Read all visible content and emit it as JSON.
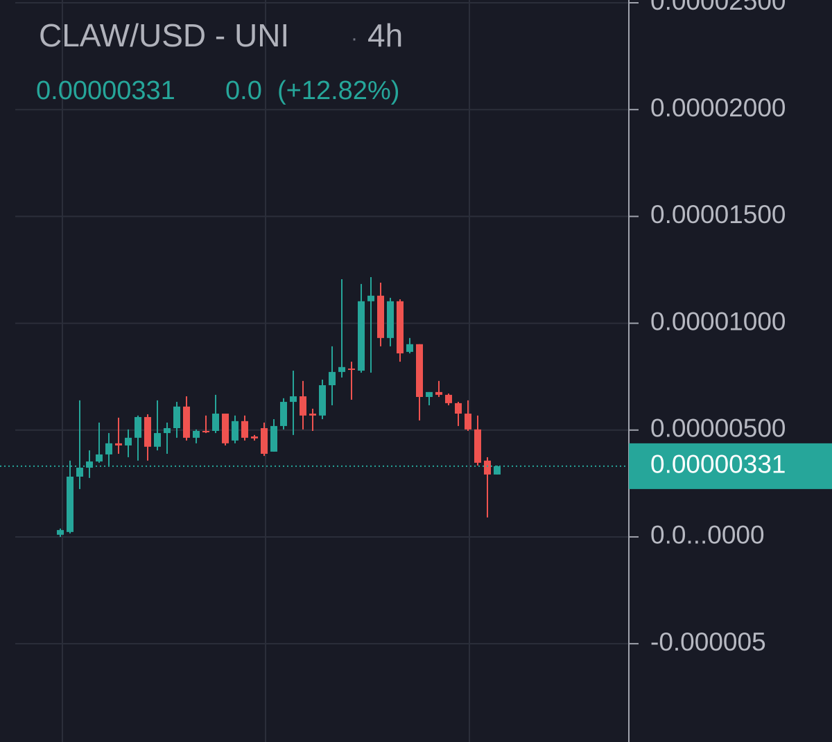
{
  "chart_data": {
    "type": "candlestick",
    "title": "CLAW/USD - UNI",
    "separator": "·",
    "interval": "4h",
    "last_price": 3.31e-06,
    "change": "0.0",
    "change_percent": "(+12.82%)",
    "up_color": "#26a69a",
    "down_color": "#ef5350",
    "grid": true,
    "ylim": [
      -9.6e-06,
      2.513e-05
    ],
    "yticks": [
      {
        "value": 2.5e-05,
        "label": "0.00002500"
      },
      {
        "value": 2e-05,
        "label": "0.00002000"
      },
      {
        "value": 1.5e-05,
        "label": "0.00001500"
      },
      {
        "value": 1e-05,
        "label": "0.00001000"
      },
      {
        "value": 5e-06,
        "label": "0.00000500"
      },
      {
        "value": 0,
        "label": "0.0...0000"
      },
      -5e-06
    ],
    "open": [
      1e-07,
      2.3e-07,
      2.82e-06,
      3.24e-06,
      3.53e-06,
      3.86e-06,
      4.38e-06,
      4.28e-06,
      4.64e-06,
      5.61e-06,
      4.22e-06,
      4.86e-06,
      5.09e-06,
      6.1e-06,
      4.64e-06,
      4.96e-06,
      4.96e-06,
      5.77e-06,
      4.51e-06,
      5.42e-06,
      4.7e-06,
      5.09e-06,
      3.99e-06,
      5.19e-06,
      6.32e-06,
      6.58e-06,
      5.77e-06,
      5.68e-06,
      7.1e-06,
      7.72e-06,
      7.88e-06,
      7.78e-06,
      1.103e-05,
      1.129e-05,
      9.31e-06,
      1.103e-05,
      8.66e-06,
      9.02e-06,
      6.55e-06,
      6.78e-06,
      6.65e-06,
      6.26e-06,
      5.77e-06,
      5.03e-06,
      3.57e-06,
      2.92e-06
    ],
    "high": [
      3.9e-07,
      3.57e-06,
      6.39e-06,
      4.05e-06,
      5.35e-06,
      4.86e-06,
      5.58e-06,
      5.03e-06,
      5.68e-06,
      5.74e-06,
      6.39e-06,
      5.35e-06,
      6.32e-06,
      6.58e-06,
      5.03e-06,
      5.68e-06,
      6.65e-06,
      5.77e-06,
      5.68e-06,
      5.68e-06,
      4.77e-06,
      5.35e-06,
      5.51e-06,
      6.49e-06,
      7.78e-06,
      7.3e-06,
      6e-06,
      7.36e-06,
      8.92e-06,
      1.206e-05,
      8.2e-06,
      1.184e-05,
      1.216e-05,
      1.19e-05,
      1.119e-05,
      1.112e-05,
      9.31e-06,
      9.02e-06,
      6.78e-06,
      7.3e-06,
      6.71e-06,
      6.32e-06,
      6.39e-06,
      5.68e-06,
      3.73e-06,
      3.34e-06
    ],
    "low": [
      0,
      1.6e-07,
      2.24e-06,
      2.76e-06,
      3.47e-06,
      3.31e-06,
      3.89e-06,
      3.73e-06,
      3.57e-06,
      3.57e-06,
      4.05e-06,
      3.89e-06,
      4.64e-06,
      4.51e-06,
      4.38e-06,
      4.86e-06,
      4.86e-06,
      4.28e-06,
      4.38e-06,
      4.51e-06,
      4.51e-06,
      3.79e-06,
      3.99e-06,
      5.03e-06,
      4.77e-06,
      5.03e-06,
      4.96e-06,
      5.51e-06,
      6.16e-06,
      7.46e-06,
      6.42e-06,
      7.69e-06,
      7.69e-06,
      8.92e-06,
      8.92e-06,
      8.2e-06,
      8.59e-06,
      5.45e-06,
      6.16e-06,
      6.55e-06,
      6.16e-06,
      5.19e-06,
      4.96e-06,
      3.34e-06,
      9.1e-07,
      2.92e-06
    ],
    "close": [
      3.2e-07,
      2.82e-06,
      3.24e-06,
      3.53e-06,
      3.86e-06,
      4.38e-06,
      4.28e-06,
      4.64e-06,
      5.61e-06,
      4.22e-06,
      4.86e-06,
      5.09e-06,
      6.1e-06,
      4.64e-06,
      4.96e-06,
      4.9e-06,
      5.77e-06,
      4.38e-06,
      5.42e-06,
      4.64e-06,
      4.61e-06,
      3.89e-06,
      5.19e-06,
      6.32e-06,
      6.58e-06,
      5.68e-06,
      5.68e-06,
      7.1e-06,
      7.72e-06,
      7.95e-06,
      7.82e-06,
      1.103e-05,
      1.129e-05,
      9.31e-06,
      1.103e-05,
      8.59e-06,
      9.02e-06,
      6.55e-06,
      6.78e-06,
      6.65e-06,
      6.26e-06,
      5.77e-06,
      5.03e-06,
      3.47e-06,
      2.92e-06,
      3.31e-06
    ]
  }
}
